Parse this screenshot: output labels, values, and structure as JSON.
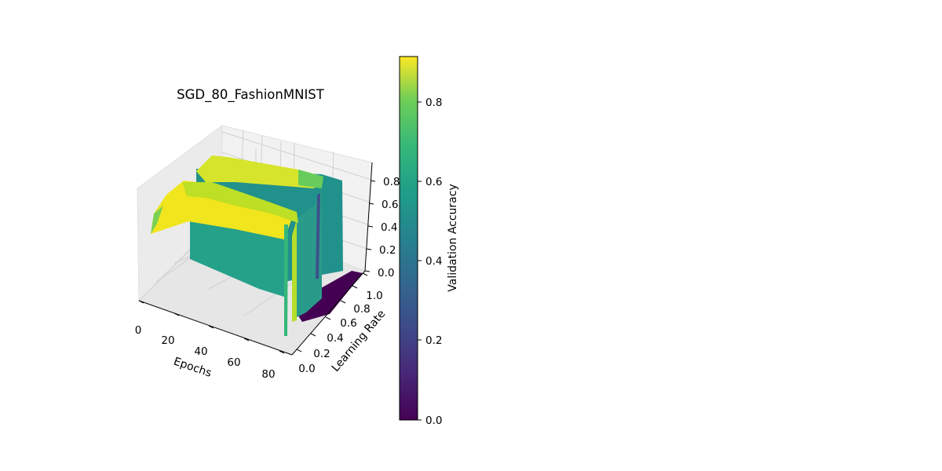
{
  "chart_data": {
    "type": "surface3d",
    "title": "SGD_80_FashionMNIST",
    "xlabel": "Epochs",
    "ylabel": "Learning Rate",
    "zlabel": "",
    "xlim": [
      0,
      80
    ],
    "ylim": [
      0,
      1.0
    ],
    "zlim": [
      0,
      0.9
    ],
    "x_ticks": [
      "0",
      "20",
      "40",
      "60",
      "80"
    ],
    "y_ticks": [
      "0.0",
      "0.2",
      "0.4",
      "0.6",
      "0.8",
      "1.0"
    ],
    "z_ticks": [
      "0.0",
      "0.2",
      "0.4",
      "0.6",
      "0.8"
    ],
    "grid": true,
    "colormap": "viridis",
    "colorbar": {
      "label": "Validation Accuracy",
      "range": [
        0,
        0.91
      ],
      "ticks": [
        "0.0",
        "0.2",
        "0.4",
        "0.6",
        "0.8"
      ]
    },
    "learning_rates": [
      0.0,
      0.2,
      0.35,
      0.5,
      0.6,
      0.7,
      0.8,
      0.9,
      1.0
    ],
    "epochs": [
      0,
      10,
      20,
      30,
      40,
      50,
      60,
      70,
      80
    ],
    "series": [
      {
        "name": "0.0",
        "values": [
          0.55,
          0.78,
          0.82,
          0.84,
          0.85,
          0.86,
          0.86,
          0.86,
          0.86
        ]
      },
      {
        "name": "0.2",
        "values": [
          0.74,
          0.86,
          0.87,
          0.88,
          0.88,
          0.88,
          0.89,
          0.89,
          0.89
        ]
      },
      {
        "name": "0.35",
        "values": [
          0.5,
          0.5,
          0.5,
          0.5,
          0.5,
          0.5,
          0.5,
          0.5,
          0.5
        ]
      },
      {
        "name": "0.5",
        "values": [
          0.5,
          0.5,
          0.5,
          0.5,
          0.5,
          0.5,
          0.5,
          0.5,
          0.5
        ]
      },
      {
        "name": "0.6",
        "values": [
          0.8,
          0.86,
          0.88,
          0.89,
          0.89,
          0.89,
          0.89,
          0.89,
          0.89
        ]
      },
      {
        "name": "0.7",
        "values": [
          0.84,
          0.87,
          0.88,
          0.89,
          0.89,
          0.89,
          0.89,
          0.89,
          0.89
        ]
      },
      {
        "name": "0.8",
        "values": [
          0.5,
          0.5,
          0.5,
          0.5,
          0.5,
          0.5,
          0.5,
          0.5,
          0.5
        ]
      },
      {
        "name": "0.9",
        "values": [
          0.52,
          0.52,
          0.52,
          0.52,
          0.52,
          0.52,
          0.52,
          0.52,
          0.52
        ]
      },
      {
        "name": "1.0",
        "values": [
          0.0,
          0.0,
          0.0,
          0.0,
          0.0,
          0.0,
          0.0,
          0.0,
          0.0
        ]
      }
    ]
  }
}
